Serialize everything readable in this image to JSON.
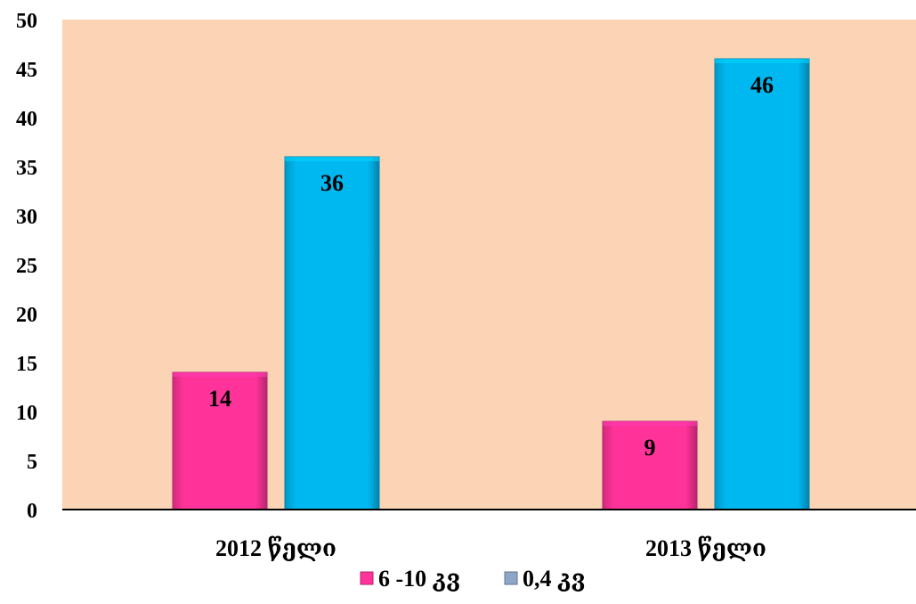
{
  "chart_data": {
    "type": "bar",
    "categories": [
      "2012 წელი",
      "2013 წელი"
    ],
    "series": [
      {
        "name": "6 -10 კვ",
        "values": [
          14,
          9
        ],
        "color": "#ff3399"
      },
      {
        "name": "0,4 კვ",
        "values": [
          36,
          46
        ],
        "color": "#00b8f0"
      }
    ],
    "data_labels": [
      [
        "14",
        "9"
      ],
      [
        "36",
        "46"
      ]
    ],
    "ylim": [
      0,
      50
    ],
    "yticks": [
      "0",
      "5",
      "10",
      "15",
      "20",
      "25",
      "30",
      "35",
      "40",
      "45",
      "50"
    ],
    "title": "",
    "xlabel": "",
    "ylabel": "",
    "grid": false,
    "legend_position": "bottom",
    "plot_background": "#fad4b4"
  }
}
